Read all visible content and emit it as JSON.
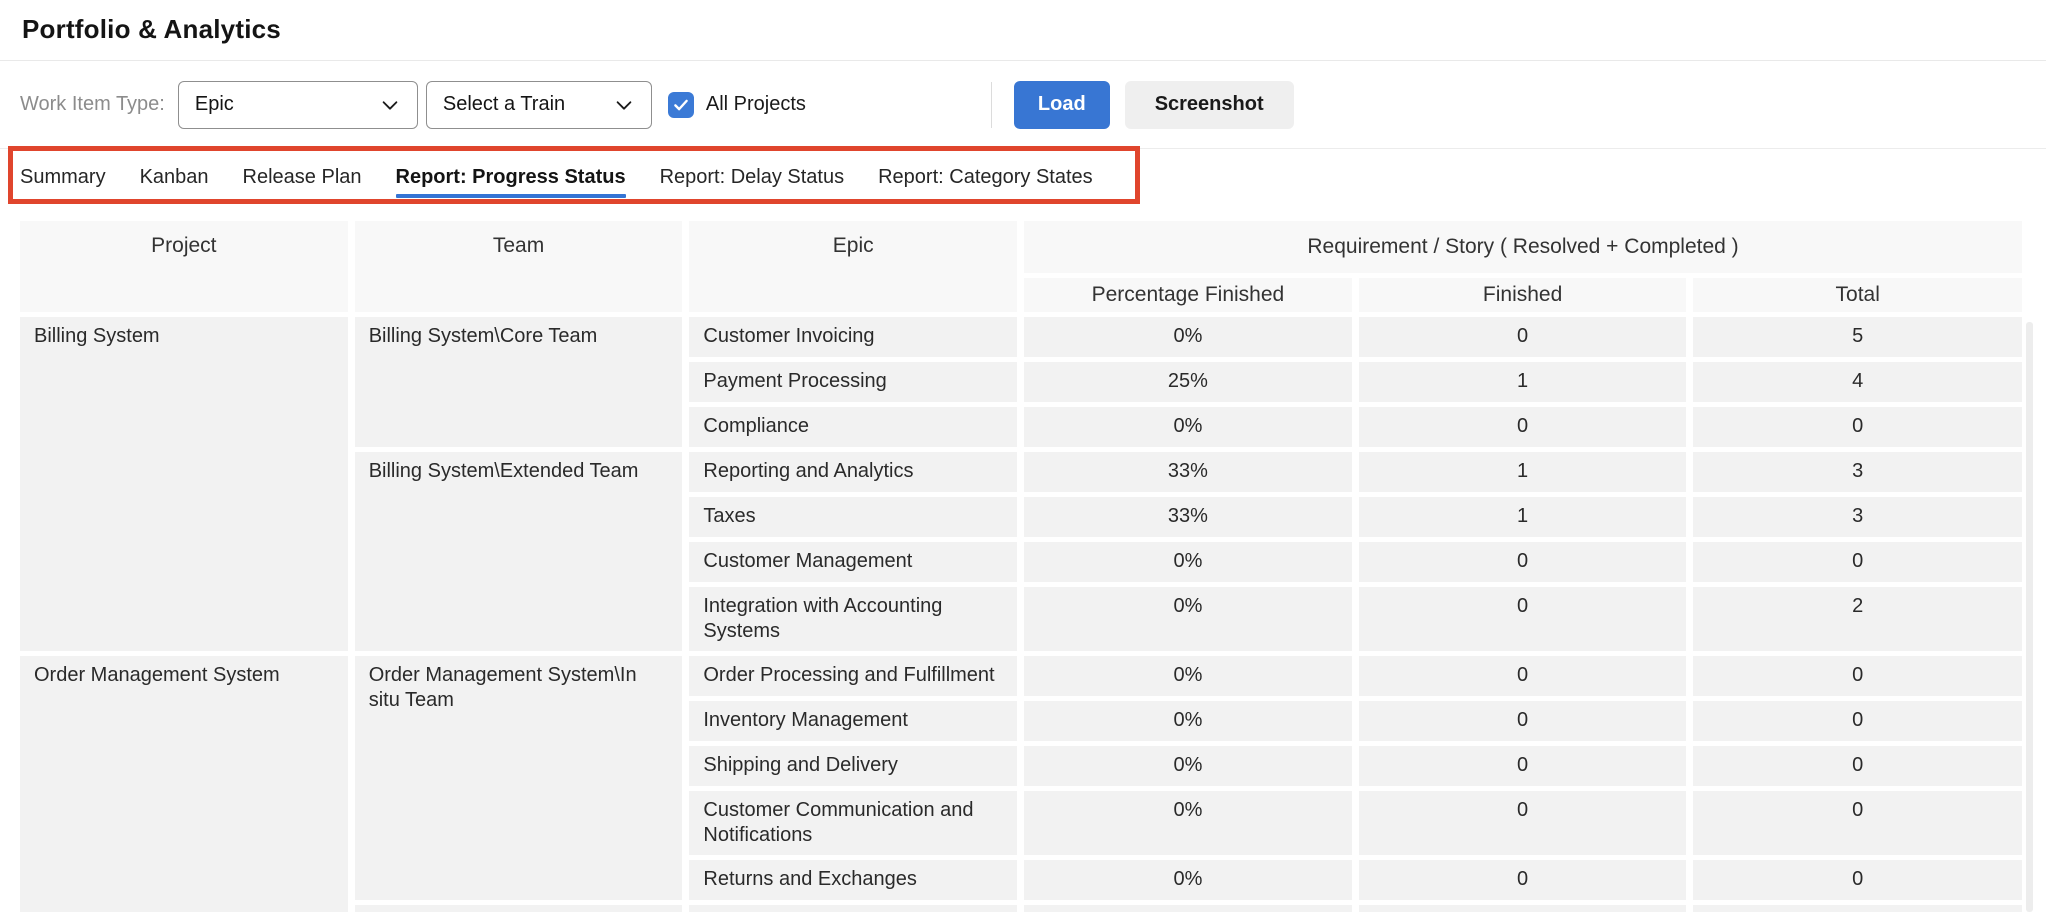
{
  "page": {
    "title": "Portfolio & Analytics"
  },
  "toolbar": {
    "work_item_type_label": "Work Item Type:",
    "work_item_type_value": "Epic",
    "train_value": "Select a Train",
    "all_projects_label": "All Projects",
    "all_projects_checked": true,
    "load_label": "Load",
    "screenshot_label": "Screenshot"
  },
  "tabs": {
    "items": [
      {
        "label": "Summary",
        "active": false
      },
      {
        "label": "Kanban",
        "active": false
      },
      {
        "label": "Release Plan",
        "active": false
      },
      {
        "label": "Report: Progress Status",
        "active": true
      },
      {
        "label": "Report: Delay Status",
        "active": false
      },
      {
        "label": "Report: Category States",
        "active": false
      }
    ],
    "active_underline_color": "#3474d4",
    "annotation_box_color": "#e0452d"
  },
  "table": {
    "headers": {
      "project": "Project",
      "team": "Team",
      "epic": "Epic",
      "group": "Requirement / Story ( Resolved + Completed )",
      "percentage": "Percentage Finished",
      "finished": "Finished",
      "total": "Total"
    },
    "groups": [
      {
        "project": "Billing System",
        "teams": [
          {
            "team": "Billing System\\Core Team",
            "epics": [
              {
                "name": "Customer Invoicing",
                "pct": "0%",
                "finished": "0",
                "total": "5"
              },
              {
                "name": "Payment Processing",
                "pct": "25%",
                "finished": "1",
                "total": "4"
              },
              {
                "name": "Compliance",
                "pct": "0%",
                "finished": "0",
                "total": "0"
              }
            ]
          },
          {
            "team": "Billing System\\Extended Team",
            "epics": [
              {
                "name": "Reporting and Analytics",
                "pct": "33%",
                "finished": "1",
                "total": "3"
              },
              {
                "name": "Taxes",
                "pct": "33%",
                "finished": "1",
                "total": "3"
              },
              {
                "name": "Customer Management",
                "pct": "0%",
                "finished": "0",
                "total": "0"
              },
              {
                "name": "Integration with Accounting Systems",
                "pct": "0%",
                "finished": "0",
                "total": "2",
                "tall": true
              }
            ]
          }
        ]
      },
      {
        "project": "Order Management System",
        "teams": [
          {
            "team": "Order Management System\\In situ Team",
            "epics": [
              {
                "name": "Order Processing and Fulfillment",
                "pct": "0%",
                "finished": "0",
                "total": "0"
              },
              {
                "name": "Inventory Management",
                "pct": "0%",
                "finished": "0",
                "total": "0"
              },
              {
                "name": "Shipping and Delivery",
                "pct": "0%",
                "finished": "0",
                "total": "0"
              },
              {
                "name": "Customer Communication and Notifications",
                "pct": "0%",
                "finished": "0",
                "total": "0",
                "tall": true
              },
              {
                "name": "Returns and Exchanges",
                "pct": "0%",
                "finished": "0",
                "total": "0"
              }
            ]
          },
          {
            "team": "",
            "epics": [
              {
                "name": "",
                "pct": "",
                "finished": "",
                "total": ""
              }
            ]
          }
        ]
      }
    ]
  },
  "colors": {
    "accent_blue": "#3876d3",
    "annotation_red": "#e0452d",
    "header_cell_bg": "#f8f8f8",
    "body_cell_bg": "#f2f2f2"
  }
}
